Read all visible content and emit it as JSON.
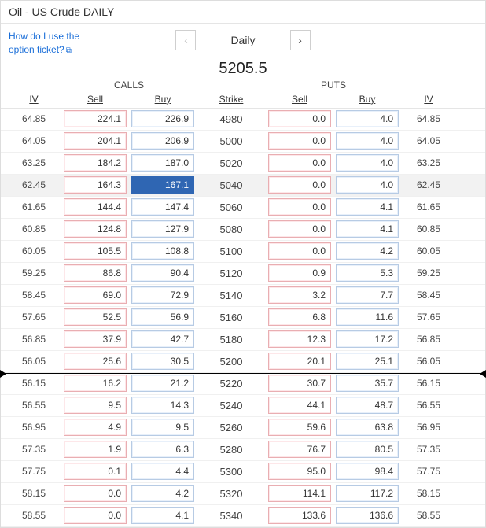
{
  "title": "Oil - US Crude DAILY",
  "help_link": {
    "line1": "How do I use the",
    "line2": "option ticket?"
  },
  "period_label": "Daily",
  "price": "5205.5",
  "group_labels": {
    "calls": "CALLS",
    "puts": "PUTS"
  },
  "columns": {
    "iv": "IV",
    "sell": "Sell",
    "buy": "Buy",
    "strike": "Strike"
  },
  "colors": {
    "sell_border": "#e9aeb2",
    "buy_border": "#b7cbe4",
    "selected_bg": "#2f66b3",
    "link": "#1a6ed8"
  },
  "selected": {
    "row_index": 3,
    "col": "call_buy"
  },
  "atm_after_row_index": 11,
  "rows": [
    {
      "iv_call": "64.85",
      "call_sell": "224.1",
      "call_buy": "226.9",
      "strike": "4980",
      "put_sell": "0.0",
      "put_buy": "4.0",
      "iv_put": "64.85"
    },
    {
      "iv_call": "64.05",
      "call_sell": "204.1",
      "call_buy": "206.9",
      "strike": "5000",
      "put_sell": "0.0",
      "put_buy": "4.0",
      "iv_put": "64.05"
    },
    {
      "iv_call": "63.25",
      "call_sell": "184.2",
      "call_buy": "187.0",
      "strike": "5020",
      "put_sell": "0.0",
      "put_buy": "4.0",
      "iv_put": "63.25"
    },
    {
      "iv_call": "62.45",
      "call_sell": "164.3",
      "call_buy": "167.1",
      "strike": "5040",
      "put_sell": "0.0",
      "put_buy": "4.0",
      "iv_put": "62.45"
    },
    {
      "iv_call": "61.65",
      "call_sell": "144.4",
      "call_buy": "147.4",
      "strike": "5060",
      "put_sell": "0.0",
      "put_buy": "4.1",
      "iv_put": "61.65"
    },
    {
      "iv_call": "60.85",
      "call_sell": "124.8",
      "call_buy": "127.9",
      "strike": "5080",
      "put_sell": "0.0",
      "put_buy": "4.1",
      "iv_put": "60.85"
    },
    {
      "iv_call": "60.05",
      "call_sell": "105.5",
      "call_buy": "108.8",
      "strike": "5100",
      "put_sell": "0.0",
      "put_buy": "4.2",
      "iv_put": "60.05"
    },
    {
      "iv_call": "59.25",
      "call_sell": "86.8",
      "call_buy": "90.4",
      "strike": "5120",
      "put_sell": "0.9",
      "put_buy": "5.3",
      "iv_put": "59.25"
    },
    {
      "iv_call": "58.45",
      "call_sell": "69.0",
      "call_buy": "72.9",
      "strike": "5140",
      "put_sell": "3.2",
      "put_buy": "7.7",
      "iv_put": "58.45"
    },
    {
      "iv_call": "57.65",
      "call_sell": "52.5",
      "call_buy": "56.9",
      "strike": "5160",
      "put_sell": "6.8",
      "put_buy": "11.6",
      "iv_put": "57.65"
    },
    {
      "iv_call": "56.85",
      "call_sell": "37.9",
      "call_buy": "42.7",
      "strike": "5180",
      "put_sell": "12.3",
      "put_buy": "17.2",
      "iv_put": "56.85"
    },
    {
      "iv_call": "56.05",
      "call_sell": "25.6",
      "call_buy": "30.5",
      "strike": "5200",
      "put_sell": "20.1",
      "put_buy": "25.1",
      "iv_put": "56.05"
    },
    {
      "iv_call": "56.15",
      "call_sell": "16.2",
      "call_buy": "21.2",
      "strike": "5220",
      "put_sell": "30.7",
      "put_buy": "35.7",
      "iv_put": "56.15"
    },
    {
      "iv_call": "56.55",
      "call_sell": "9.5",
      "call_buy": "14.3",
      "strike": "5240",
      "put_sell": "44.1",
      "put_buy": "48.7",
      "iv_put": "56.55"
    },
    {
      "iv_call": "56.95",
      "call_sell": "4.9",
      "call_buy": "9.5",
      "strike": "5260",
      "put_sell": "59.6",
      "put_buy": "63.8",
      "iv_put": "56.95"
    },
    {
      "iv_call": "57.35",
      "call_sell": "1.9",
      "call_buy": "6.3",
      "strike": "5280",
      "put_sell": "76.7",
      "put_buy": "80.5",
      "iv_put": "57.35"
    },
    {
      "iv_call": "57.75",
      "call_sell": "0.1",
      "call_buy": "4.4",
      "strike": "5300",
      "put_sell": "95.0",
      "put_buy": "98.4",
      "iv_put": "57.75"
    },
    {
      "iv_call": "58.15",
      "call_sell": "0.0",
      "call_buy": "4.2",
      "strike": "5320",
      "put_sell": "114.1",
      "put_buy": "117.2",
      "iv_put": "58.15"
    },
    {
      "iv_call": "58.55",
      "call_sell": "0.0",
      "call_buy": "4.1",
      "strike": "5340",
      "put_sell": "133.6",
      "put_buy": "136.6",
      "iv_put": "58.55"
    }
  ]
}
